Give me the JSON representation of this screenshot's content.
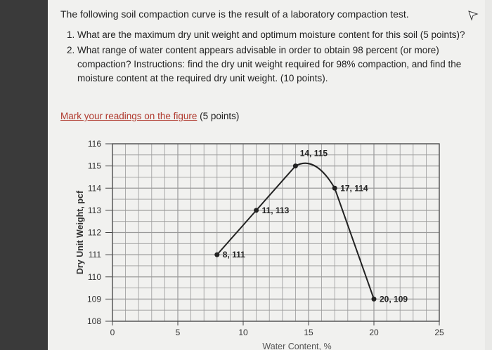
{
  "intro": "The following soil compaction curve is the result of a laboratory compaction test.",
  "questions": [
    "What are the maximum dry unit weight and optimum moisture content for this soil (5 points)?",
    "What range of water content appears advisable in order to obtain 98 percent (or more) compaction? Instructions: find the dry unit weight required for 98% compaction, and find the moisture content at the required dry unit weight. (10 points)."
  ],
  "mark_link": "Mark your readings on the figure",
  "mark_suffix": " (5 points)",
  "chart_data": {
    "type": "line",
    "ylabel": "Dry Unit Weight, pcf",
    "xlabel": "Water Content, %",
    "xlim": [
      0,
      25
    ],
    "ylim": [
      108,
      116
    ],
    "x_ticks": [
      0,
      5,
      10,
      15,
      20,
      25
    ],
    "y_ticks": [
      116,
      115,
      114,
      113,
      112,
      111,
      110,
      109,
      108
    ],
    "grid": true,
    "points": [
      {
        "x": 8,
        "y": 111,
        "label": "8, 111"
      },
      {
        "x": 11,
        "y": 113,
        "label": "11, 113"
      },
      {
        "x": 14,
        "y": 115,
        "label": "14, 115"
      },
      {
        "x": 17,
        "y": 114,
        "label": "17, 114"
      },
      {
        "x": 20,
        "y": 109,
        "label": "20, 109"
      }
    ]
  },
  "colors": {
    "link": "#b03a2e",
    "curve": "#222222",
    "grid": "#9a9a9a"
  }
}
